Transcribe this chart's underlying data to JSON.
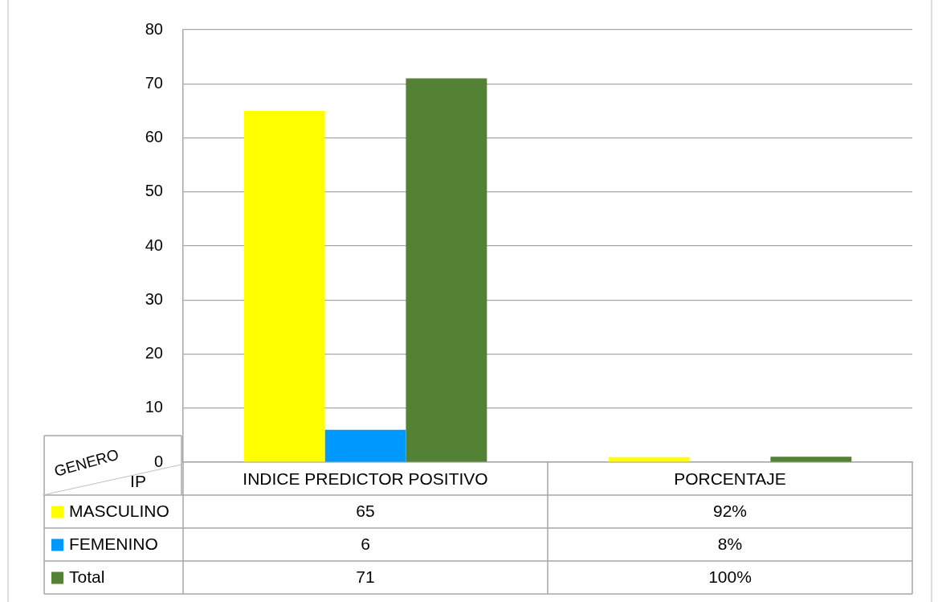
{
  "chart_data": {
    "type": "bar",
    "categories": [
      "INDICE PREDICTOR POSITIVO",
      "PORCENTAJE"
    ],
    "series": [
      {
        "name": "MASCULINO",
        "color": "#ffff00",
        "values": [
          65,
          0.92
        ],
        "value_labels": [
          "65",
          "92%"
        ]
      },
      {
        "name": "FEMENINO",
        "color": "#0099ff",
        "values": [
          6,
          0.08
        ],
        "value_labels": [
          "6",
          "8%"
        ]
      },
      {
        "name": "Total",
        "color": "#548235",
        "values": [
          71,
          1
        ],
        "value_labels": [
          "71",
          "100%"
        ]
      }
    ],
    "ylim": [
      0,
      80
    ],
    "yticks": [
      0,
      10,
      20,
      30,
      40,
      50,
      60,
      70,
      80
    ],
    "grid": "y",
    "legend": "bottom left",
    "legend_title": "GENERO",
    "xlabel": "IP"
  }
}
